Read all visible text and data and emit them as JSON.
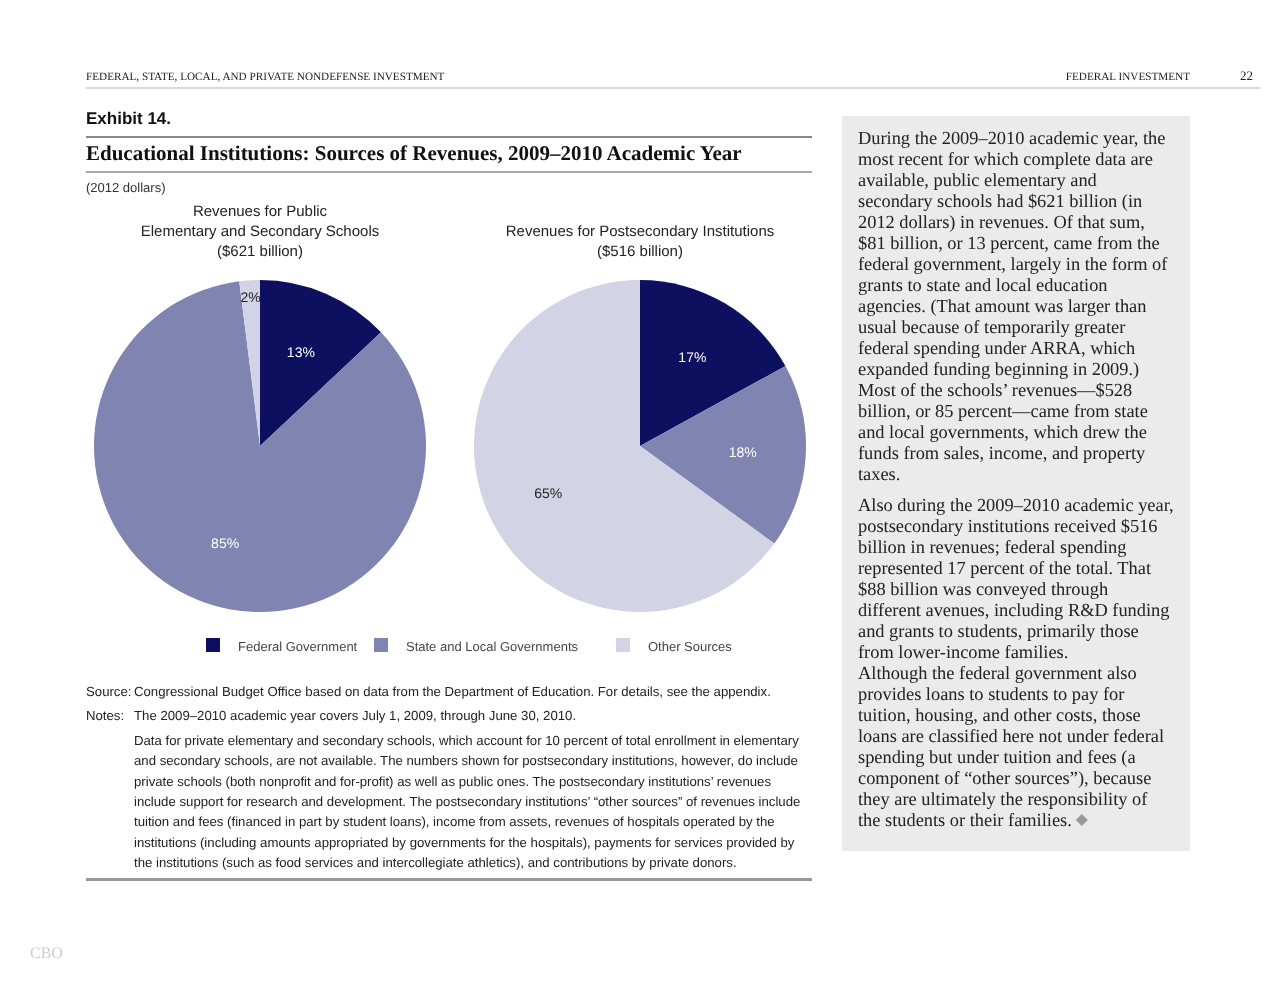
{
  "chart_data": [
    {
      "type": "other",
      "title": "Educational Institutions: Sources of Revenues, 2009–2010 Academic Year",
      "subtitle": "(2012 dollars)",
      "annotations": [
        "Exhibit 14.",
        "Source:",
        "Congressional Budget Office based on data from the Department of Education. For details, see the appendix.",
        "Notes:",
        "The 2009–2010 academic year covers July 1, 2009, through June 30, 2010.",
        "Data for private elementary and secondary schools, which account for 10 percent of total enrollment in elementary and secondary schools, are not available. The numbers shown for postsecondary institutions, however, do include private schools (both nonprofit and for-profit) as well as public ones. The postsecondary institutions’ revenues include support for research and development. The postsecondary institutions’ “other sources” of revenues include tuition and fees (financed in part by student loans), income from assets, revenues of hospitals operated by the institutions (including amounts appropriated by governments for the hospitals), payments for services provided by the institutions (such as food services and intercollegiate athletics), and contributions by private donors."
      ]
    },
    {
      "type": "pie",
      "title": "Revenues for Public\nElementary and Secondary Schools\n($621 billion)",
      "categories": [
        null,
        null,
        null
      ],
      "values": [
        13,
        85,
        2
      ],
      "value_labels": [
        "13%",
        "85%",
        "2%"
      ],
      "colors": [
        "#0c105e",
        "#7f84b1",
        "#d2d3e4"
      ],
      "legend": false
    },
    {
      "type": "pie",
      "title": "Revenues for Postsecondary Institutions\n($516 billion)",
      "categories": [
        "Federal Government",
        "State and Local Governments",
        "Other Sources"
      ],
      "values": [
        17,
        18,
        65
      ],
      "value_labels": [
        "17%",
        "18%",
        "65%"
      ],
      "colors": [
        "#0c105e",
        "#7f84b1",
        "#d2d3e4"
      ],
      "legend": "bottom"
    },
    {
      "type": "other",
      "annotations": [
        "FEDERAL, STATE, LOCAL, AND PRIVATE NONDEFENSE INVESTMENT",
        "FEDERAL INVESTMENT",
        "22",
        "During the 2009–2010 academic year, the most recent for which complete data are available, public elementary and secondary schools had $621 billion (in 2012 dollars) in revenues. Of that sum, $81 billion, or 13 percent, came from the federal government, largely in the form of grants to state and local education agencies. (That amount was larger than usual because of temporarily greater federal spending under ARRA, which expanded funding beginning in 2009.) Most of the schools’ revenues—$528 billion, or 85 percent—came from state and local governments, which drew the funds from sales, income, and property taxes.",
        "Also during the 2009–2010 academic year, postsecondary institutions received $516 billion in revenues; federal spending represented 17 percent of the total. That $88 billion was conveyed through different avenues, including R&D funding and grants to students, primarily those from lower-income families.",
        "Although the federal government also provides loans to students to pay for tuition, housing, and other costs, those loans are classified here not under federal spending but under tuition and fees (a component of “other sources”), because they are ultimately the responsibility of the students or their families.",
        "CBO"
      ]
    }
  ]
}
